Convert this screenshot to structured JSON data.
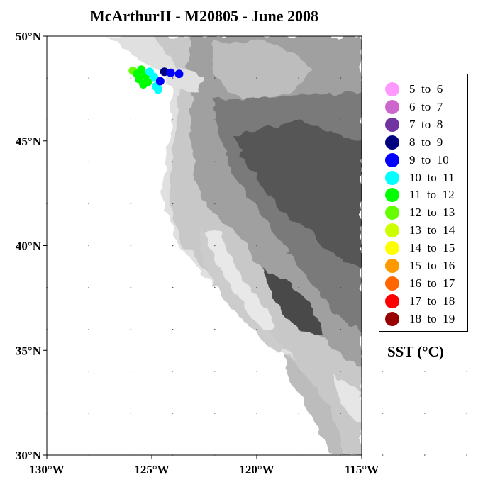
{
  "title": "McArthurII - M20805 - June 2008",
  "map": {
    "lat_labels": [
      {
        "value": 50,
        "label": "50°N"
      },
      {
        "value": 45,
        "label": "45°N"
      },
      {
        "value": 40,
        "label": "40°N"
      },
      {
        "value": 35,
        "label": "35°N"
      },
      {
        "value": 30,
        "label": "30°N"
      }
    ],
    "lon_labels": [
      {
        "value": -130,
        "label": "130°W"
      },
      {
        "value": -125,
        "label": "125°W"
      },
      {
        "value": -120,
        "label": "120°W"
      },
      {
        "value": -115,
        "label": "115°W"
      }
    ],
    "lon_range": [
      -130,
      -115
    ],
    "lat_range": [
      30,
      50
    ],
    "ocean_color": "#ffffff",
    "terrain_colors": [
      "#e4e4e4",
      "#c8c8c8",
      "#a8a8a8",
      "#888888",
      "#6c6c6c",
      "#545454",
      "#404040"
    ],
    "observations": [
      {
        "lon": -125.9,
        "lat": 48.35,
        "bin": 7
      },
      {
        "lon": -125.7,
        "lat": 48.2,
        "bin": 6
      },
      {
        "lon": -125.5,
        "lat": 48.4,
        "bin": 6
      },
      {
        "lon": -125.3,
        "lat": 48.1,
        "bin": 6
      },
      {
        "lon": -125.6,
        "lat": 47.95,
        "bin": 6
      },
      {
        "lon": -125.1,
        "lat": 48.3,
        "bin": 5
      },
      {
        "lon": -124.9,
        "lat": 48.05,
        "bin": 5
      },
      {
        "lon": -125.2,
        "lat": 47.8,
        "bin": 6
      },
      {
        "lon": -124.8,
        "lat": 47.6,
        "bin": 5
      },
      {
        "lon": -124.6,
        "lat": 47.85,
        "bin": 4
      },
      {
        "lon": -124.4,
        "lat": 48.3,
        "bin": 3
      },
      {
        "lon": -124.1,
        "lat": 48.25,
        "bin": 4
      },
      {
        "lon": -123.7,
        "lat": 48.2,
        "bin": 4
      },
      {
        "lon": -124.7,
        "lat": 47.45,
        "bin": 5
      },
      {
        "lon": -125.4,
        "lat": 47.7,
        "bin": 6
      }
    ]
  },
  "legend": {
    "bins": [
      {
        "label": "5  to  6",
        "color": "#ff99ff"
      },
      {
        "label": "6  to  7",
        "color": "#cc66cc"
      },
      {
        "label": "7  to  8",
        "color": "#7033a0"
      },
      {
        "label": "8  to  9",
        "color": "#000080"
      },
      {
        "label": "9  to  10",
        "color": "#0000ff"
      },
      {
        "label": "10  to  11",
        "color": "#00ffff"
      },
      {
        "label": "11  to  12",
        "color": "#00ff00"
      },
      {
        "label": "12  to  13",
        "color": "#66ff00"
      },
      {
        "label": "13  to  14",
        "color": "#ccff00"
      },
      {
        "label": "14  to  15",
        "color": "#ffff00"
      },
      {
        "label": "15  to  16",
        "color": "#ff9900"
      },
      {
        "label": "16  to  17",
        "color": "#ff6600"
      },
      {
        "label": "17  to  18",
        "color": "#ff0000"
      },
      {
        "label": "18  to  19",
        "color": "#990000"
      }
    ]
  },
  "units_label": "SST (°C)"
}
